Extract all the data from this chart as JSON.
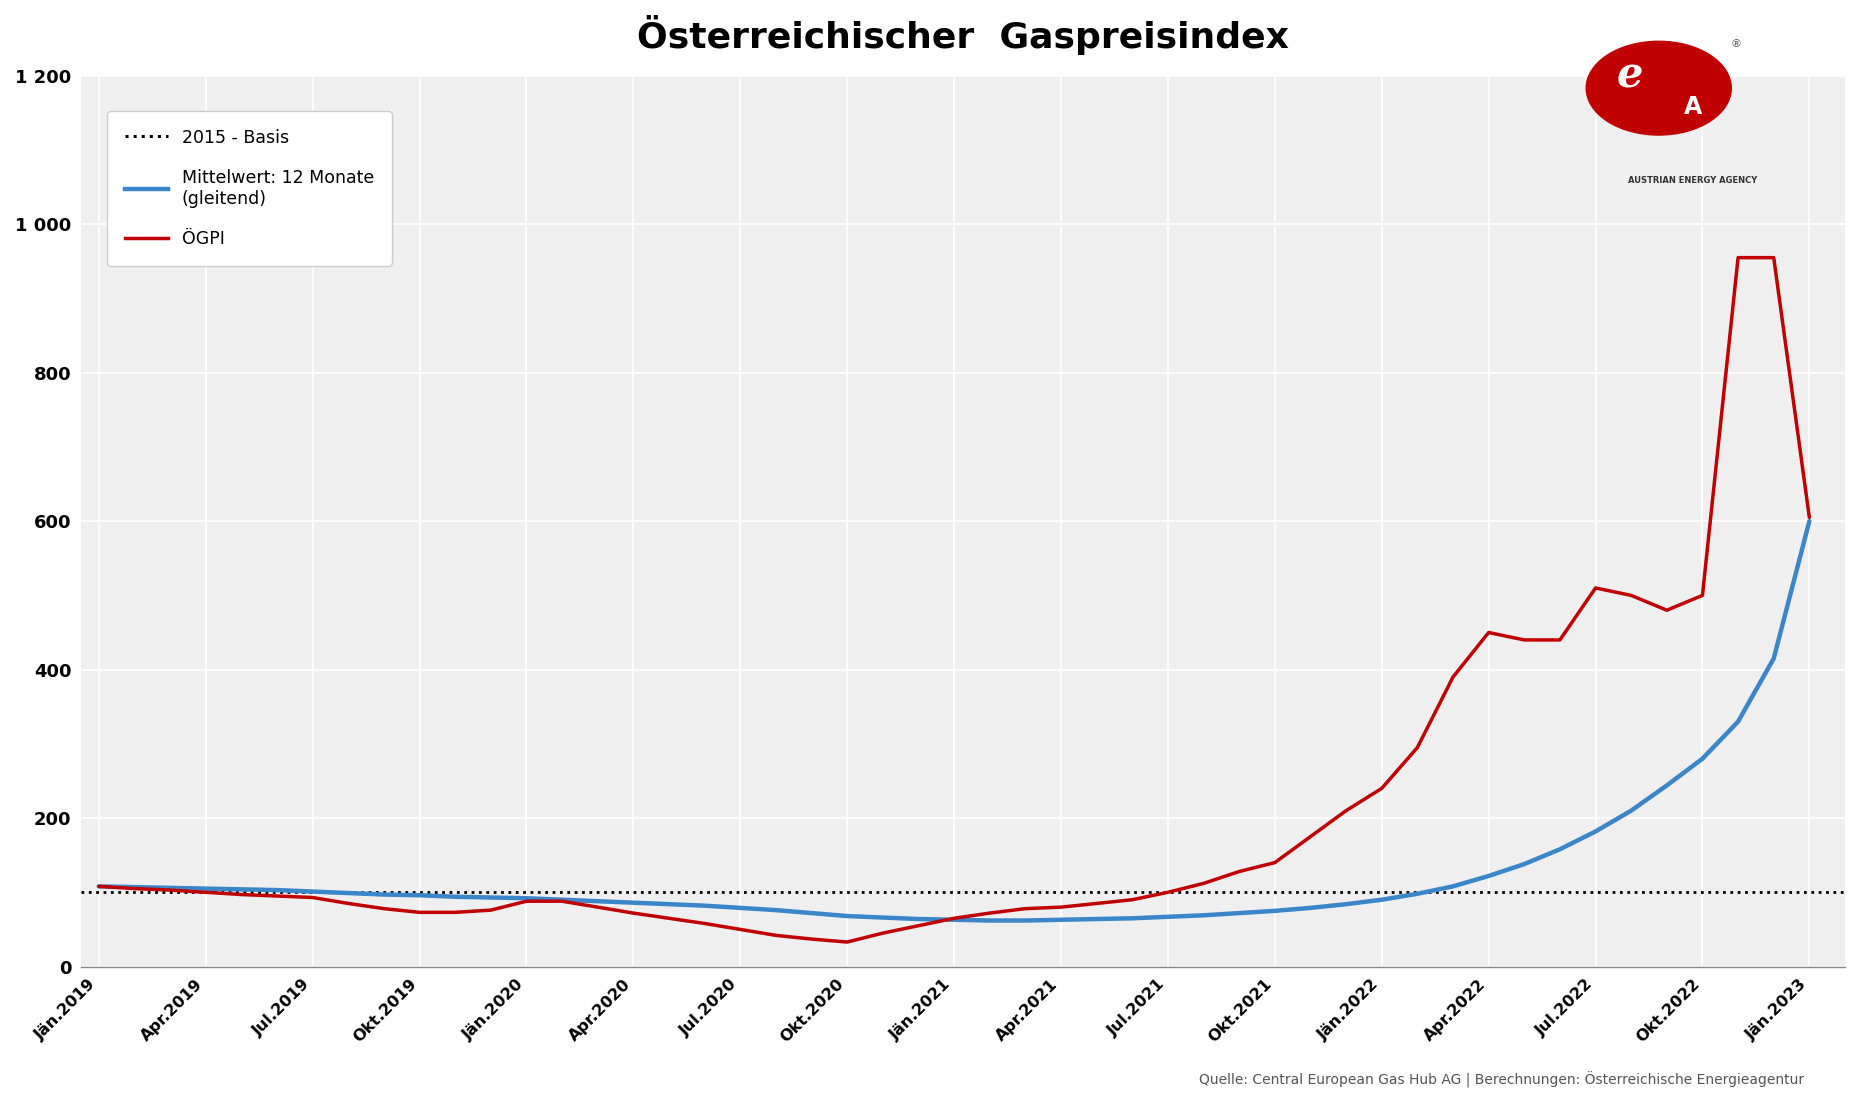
{
  "title": "Österreichischer  Gaspreisindex",
  "source_text": "Quelle: Central European Gas Hub AG | Berechnungen: Österreichische Energieagentur",
  "background_color": "#ffffff",
  "plot_bg_color": "#efefef",
  "grid_color": "#ffffff",
  "title_fontsize": 26,
  "basis_color": "#000000",
  "mittelwert_color": "#3a86c8",
  "oegpi_color": "#c00000",
  "ylim": [
    0,
    1200
  ],
  "ytick_values": [
    0,
    200,
    400,
    600,
    800,
    1000,
    1200
  ],
  "ytick_labels": [
    "0",
    "200",
    "400",
    "600",
    "800",
    "1 000",
    "1 200"
  ],
  "x_tick_positions": [
    0,
    3,
    6,
    9,
    12,
    15,
    18,
    21,
    24,
    27,
    30,
    33,
    36,
    39,
    42,
    45,
    48
  ],
  "x_labels": [
    "Jän.2019",
    "Apr.2019",
    "Jul.2019",
    "Okt.2019",
    "Jän.2020",
    "Apr.2020",
    "Jul.2020",
    "Okt.2020",
    "Jän.2021",
    "Apr.2021",
    "Jul.2021",
    "Okt.2021",
    "Jän.2022",
    "Apr.2022",
    "Jul.2022",
    "Okt.2022",
    "Jän.2023"
  ],
  "oegpi_x": [
    0,
    1,
    2,
    3,
    4,
    5,
    6,
    7,
    8,
    9,
    10,
    11,
    12,
    13,
    14,
    15,
    16,
    17,
    18,
    19,
    20,
    21,
    22,
    23,
    24,
    25,
    26,
    27,
    28,
    29,
    30,
    31,
    32,
    33,
    34,
    35,
    36,
    37,
    38,
    39,
    40,
    41,
    42,
    43,
    44,
    45,
    46,
    47,
    48
  ],
  "oegpi_y": [
    108,
    105,
    103,
    100,
    97,
    95,
    93,
    85,
    78,
    73,
    73,
    76,
    88,
    88,
    80,
    72,
    65,
    58,
    50,
    42,
    37,
    33,
    45,
    55,
    65,
    72,
    78,
    80,
    85,
    90,
    100,
    112,
    128,
    140,
    175,
    210,
    240,
    295,
    390,
    450,
    440,
    440,
    510,
    500,
    480,
    500,
    955,
    955,
    605
  ],
  "mittelwert_x": [
    0,
    1,
    2,
    3,
    4,
    5,
    6,
    7,
    8,
    9,
    10,
    11,
    12,
    13,
    14,
    15,
    16,
    17,
    18,
    19,
    20,
    21,
    22,
    23,
    24,
    25,
    26,
    27,
    28,
    29,
    30,
    31,
    32,
    33,
    34,
    35,
    36,
    37,
    38,
    39,
    40,
    41,
    42,
    43,
    44,
    45,
    46,
    47,
    48
  ],
  "mittelwert_y": [
    108,
    107,
    106,
    105,
    104,
    103,
    101,
    99,
    97,
    96,
    94,
    93,
    92,
    90,
    88,
    86,
    84,
    82,
    79,
    76,
    72,
    68,
    66,
    64,
    63,
    62,
    62,
    63,
    64,
    65,
    67,
    69,
    72,
    75,
    79,
    84,
    90,
    98,
    108,
    122,
    138,
    158,
    182,
    210,
    244,
    280,
    330,
    415,
    600
  ],
  "basis_value": 100,
  "legend_labels": [
    "2015 - Basis",
    "Mittelwert: 12 Monate\n(gleitend)",
    "ÖGPI"
  ]
}
